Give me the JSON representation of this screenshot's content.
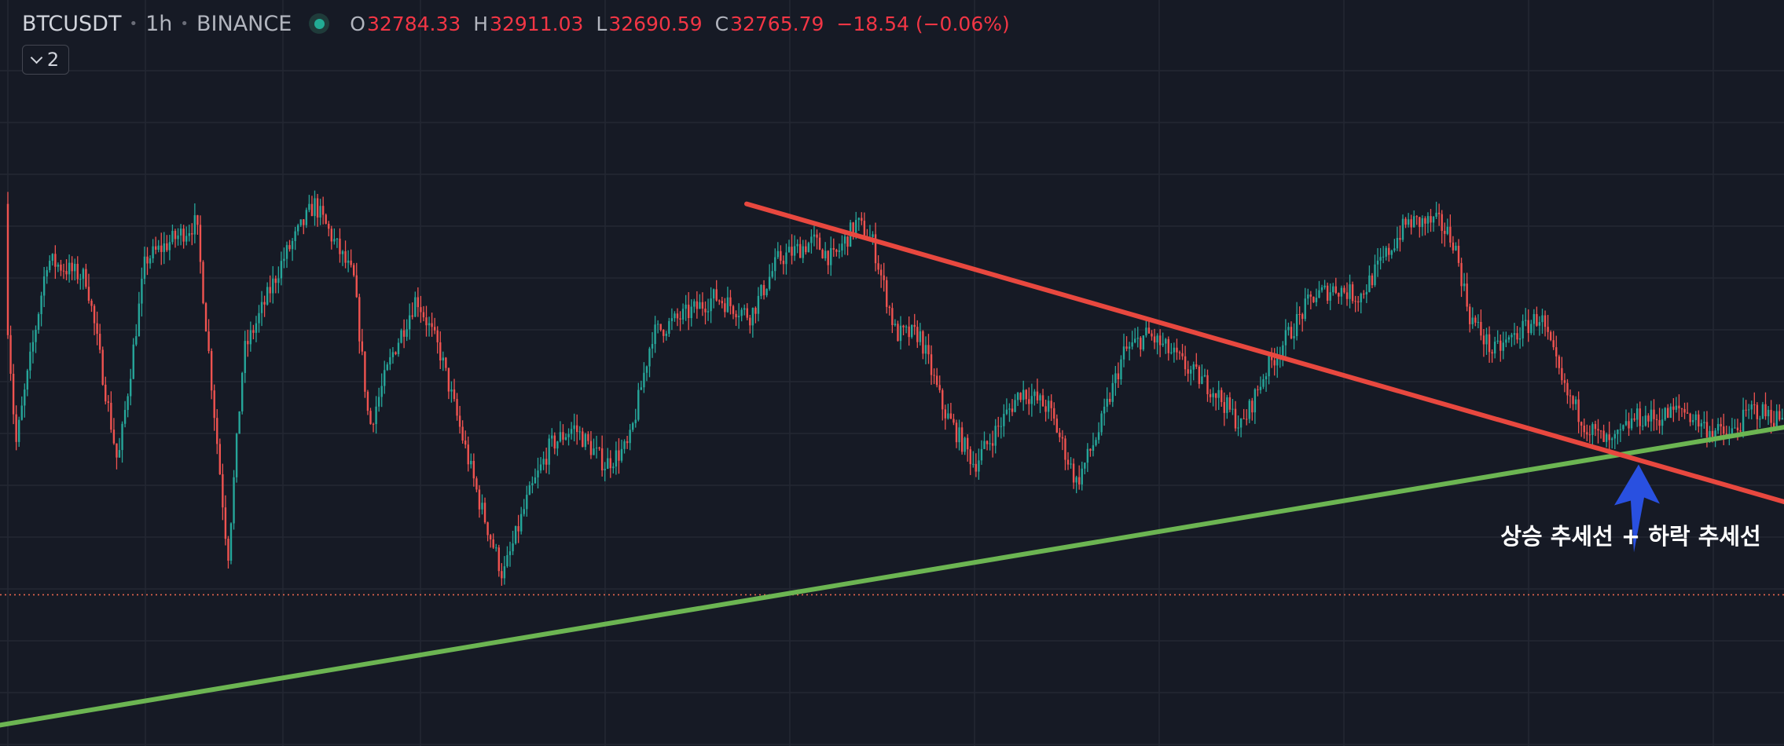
{
  "header": {
    "symbol": "BTCUSDT",
    "interval": "1h",
    "exchange": "BINANCE",
    "ohlc": {
      "open_label": "O",
      "open": "32784.33",
      "high_label": "H",
      "high": "32911.03",
      "low_label": "L",
      "low": "32690.59",
      "close_label": "C",
      "close": "32765.79",
      "change": "−18.54 (−0.06%)"
    }
  },
  "indicator_toggle": {
    "count": "2"
  },
  "annotation": {
    "text": "상승 추세선 + 하락 추세선"
  },
  "colors": {
    "background": "#161a25",
    "grid": "#232733",
    "up_candle": "#26a69a",
    "down_candle": "#ef5350",
    "rising_trendline": "#6cb552",
    "falling_trendline": "#e8483f",
    "arrow": "#2950e0",
    "price_line": "#e8664f"
  },
  "chart_data": {
    "type": "candlestick",
    "series": [
      {
        "name": "BTCUSDT",
        "approx_close_path": [
          [
            0,
            32600
          ],
          [
            20,
            31300
          ],
          [
            60,
            32300
          ],
          [
            110,
            32200
          ],
          [
            150,
            31200
          ],
          [
            185,
            32300
          ],
          [
            250,
            32500
          ],
          [
            290,
            30700
          ],
          [
            310,
            31800
          ],
          [
            360,
            32300
          ],
          [
            400,
            32600
          ],
          [
            450,
            32200
          ],
          [
            470,
            31400
          ],
          [
            500,
            31800
          ],
          [
            530,
            32100
          ],
          [
            560,
            31800
          ],
          [
            610,
            31000
          ],
          [
            640,
            30600
          ],
          [
            670,
            31000
          ],
          [
            700,
            31300
          ],
          [
            730,
            31400
          ],
          [
            770,
            31200
          ],
          [
            800,
            31300
          ],
          [
            830,
            31900
          ],
          [
            870,
            32000
          ],
          [
            910,
            32100
          ],
          [
            955,
            32000
          ],
          [
            990,
            32300
          ],
          [
            1035,
            32400
          ],
          [
            1060,
            32300
          ],
          [
            1090,
            32500
          ],
          [
            1110,
            32400
          ],
          [
            1140,
            31900
          ],
          [
            1170,
            31900
          ],
          [
            1200,
            31500
          ],
          [
            1240,
            31200
          ],
          [
            1270,
            31400
          ],
          [
            1300,
            31600
          ],
          [
            1335,
            31500
          ],
          [
            1370,
            31100
          ],
          [
            1400,
            31400
          ],
          [
            1430,
            31800
          ],
          [
            1460,
            31900
          ],
          [
            1490,
            31800
          ],
          [
            1515,
            31700
          ],
          [
            1545,
            31600
          ],
          [
            1580,
            31400
          ],
          [
            1610,
            31700
          ],
          [
            1640,
            31900
          ],
          [
            1670,
            32100
          ],
          [
            1700,
            32150
          ],
          [
            1730,
            32100
          ],
          [
            1760,
            32300
          ],
          [
            1790,
            32500
          ],
          [
            1830,
            32500
          ],
          [
            1850,
            32400
          ],
          [
            1870,
            32000
          ],
          [
            1900,
            31800
          ],
          [
            1930,
            31900
          ],
          [
            1960,
            32000
          ],
          [
            1990,
            31600
          ],
          [
            2020,
            31400
          ],
          [
            2050,
            31300
          ],
          [
            2080,
            31450
          ],
          [
            2110,
            31450
          ],
          [
            2140,
            31500
          ],
          [
            2170,
            31400
          ],
          [
            2200,
            31350
          ],
          [
            2230,
            31500
          ],
          [
            2260,
            31450
          ]
        ]
      }
    ],
    "trendlines": [
      {
        "kind": "rising",
        "from": [
          0,
          29800
        ],
        "to": [
          2270,
          31400
        ]
      },
      {
        "kind": "falling",
        "from": [
          950,
          32600
        ],
        "to": [
          2270,
          31000
        ]
      }
    ],
    "price_line": 30500,
    "marker": {
      "kind": "up-arrow",
      "at": [
        2085,
        31200
      ]
    },
    "ylim": [
      29730,
      33400
    ],
    "xlim": [
      0,
      2270
    ],
    "grid": true,
    "candle_spacing": 3.55,
    "random_seed": 7
  }
}
